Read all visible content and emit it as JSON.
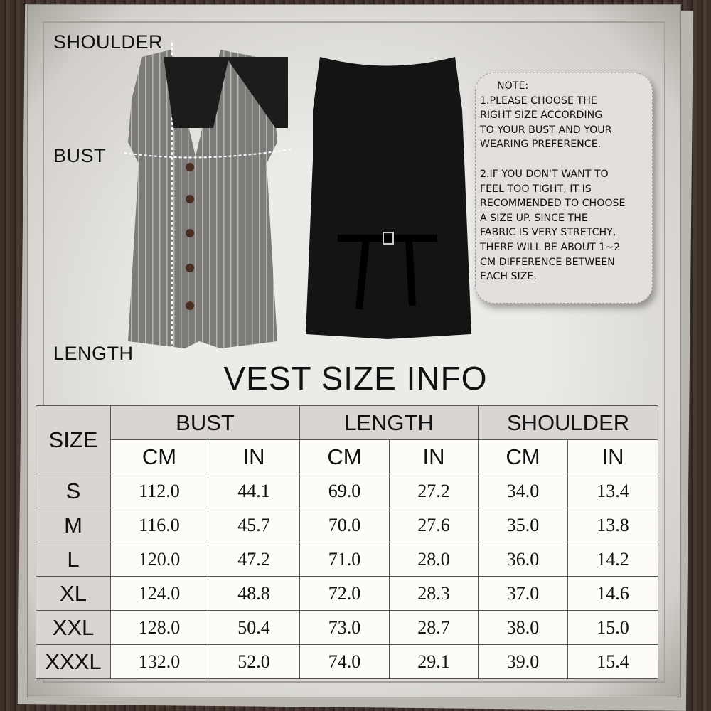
{
  "labels": {
    "shoulder": "SHOULDER",
    "bust": "BUST",
    "length": "LENGTH"
  },
  "note": {
    "heading": "NOTE:",
    "item1": "1.PLEASE CHOOSE THE\nRIGHT SIZE ACCORDING\nTO YOUR BUST AND YOUR\nWEARING PREFERENCE.",
    "item2": "2.IF YOU DON'T WANT TO\nFEEL TOO TIGHT, IT IS\nRECOMMENDED TO CHOOSE\nA SIZE UP. SINCE THE\nFABRIC IS VERY STRETCHY,\nTHERE WILL BE ABOUT 1~2\nCM DIFFERENCE BETWEEN\nEACH SIZE."
  },
  "title": "VEST SIZE INFO",
  "table": {
    "size_header": "SIZE",
    "groups": [
      "BUST",
      "LENGTH",
      "SHOULDER"
    ],
    "units": [
      "CM",
      "IN",
      "CM",
      "IN",
      "CM",
      "IN"
    ],
    "rows": [
      {
        "size": "S",
        "values": [
          "112.0",
          "44.1",
          "69.0",
          "27.2",
          "34.0",
          "13.4"
        ]
      },
      {
        "size": "M",
        "values": [
          "116.0",
          "45.7",
          "70.0",
          "27.6",
          "35.0",
          "13.8"
        ]
      },
      {
        "size": "L",
        "values": [
          "120.0",
          "47.2",
          "71.0",
          "28.0",
          "36.0",
          "14.2"
        ]
      },
      {
        "size": "XL",
        "values": [
          "124.0",
          "48.8",
          "72.0",
          "28.3",
          "37.0",
          "14.6"
        ]
      },
      {
        "size": "XXL",
        "values": [
          "128.0",
          "50.4",
          "73.0",
          "28.7",
          "38.0",
          "15.0"
        ]
      },
      {
        "size": "XXXL",
        "values": [
          "132.0",
          "52.0",
          "74.0",
          "29.1",
          "39.0",
          "15.4"
        ]
      }
    ]
  }
}
